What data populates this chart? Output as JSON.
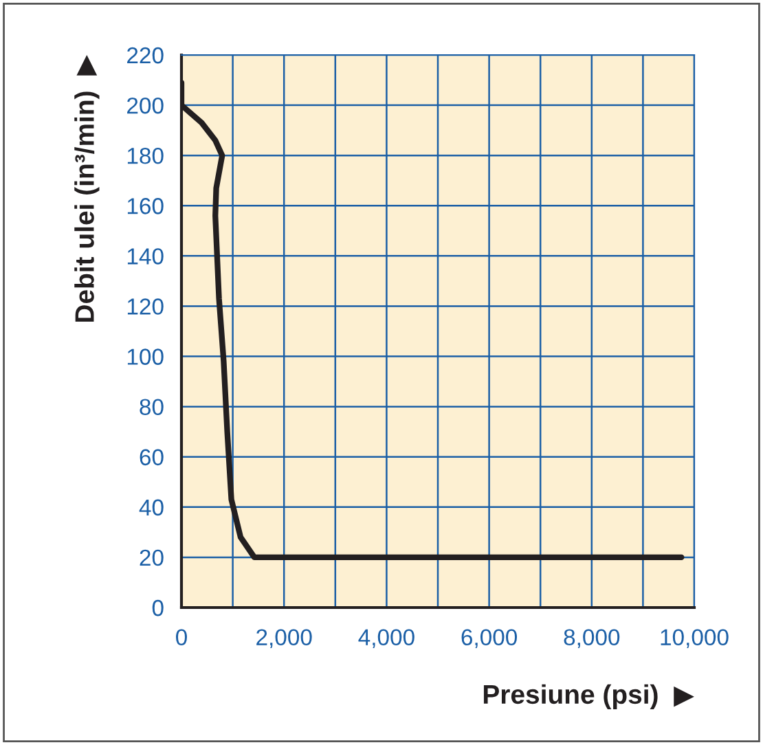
{
  "chart_data": {
    "type": "line",
    "xlabel": "Presiune (psi)  ▶",
    "ylabel": "Debit ulei (in³/min)  ▶",
    "x": [
      0,
      0,
      394,
      660,
      794,
      678,
      660,
      732,
      823,
      893,
      973,
      1153,
      1421,
      9750
    ],
    "series": [
      {
        "color": "#231f20",
        "values": [
          209,
          200,
          193,
          186,
          180,
          167,
          156,
          123,
          98,
          70,
          43,
          28,
          20,
          20
        ]
      }
    ],
    "xlim": [
      0,
      10000
    ],
    "ylim": [
      0,
      220
    ],
    "xticks": [
      0,
      {
        "value": 1000,
        "label": null
      },
      {
        "value": 2000,
        "label": "2,000"
      },
      {
        "value": 3000,
        "label": null
      },
      {
        "value": 4000,
        "label": "4,000"
      },
      {
        "value": 5000,
        "label": null
      },
      {
        "value": 6000,
        "label": "6,000"
      },
      {
        "value": 7000,
        "label": null
      },
      {
        "value": 8000,
        "label": "8,000"
      },
      {
        "value": 9000,
        "label": null
      },
      {
        "value": 10000,
        "label": "10,000"
      }
    ],
    "yticks": [
      0,
      20,
      40,
      60,
      80,
      100,
      120,
      140,
      160,
      180,
      200,
      220
    ],
    "grid": true,
    "marker": "none",
    "line_style": "solid"
  }
}
